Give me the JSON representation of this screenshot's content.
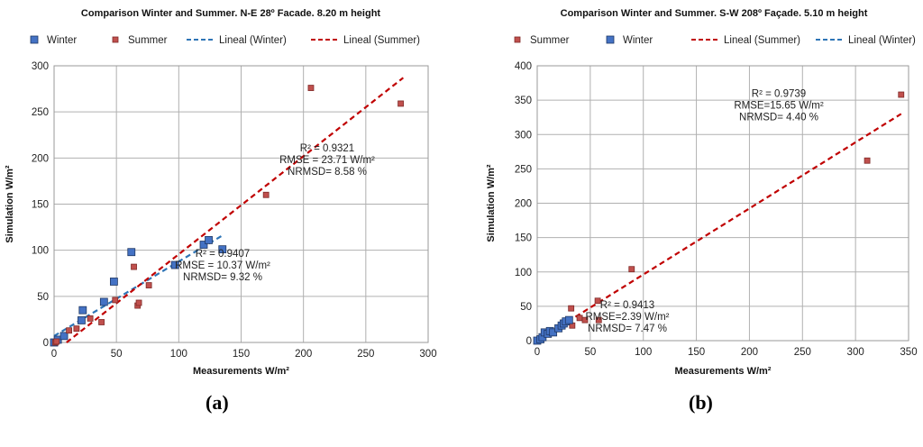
{
  "chart_data": [
    {
      "type": "scatter",
      "title": "Comparison Winter and Summer. N-E 28º Facade. 8.20 m height",
      "xlabel": "Measurements W/m²",
      "ylabel": "Simulation W/m²",
      "xlim": [
        0,
        300
      ],
      "ylim": [
        0,
        300
      ],
      "xticks": [
        "0",
        "50",
        "100",
        "150",
        "200",
        "250",
        "300"
      ],
      "yticks": [
        "0",
        "50",
        "100",
        "150",
        "200",
        "250",
        "300"
      ],
      "grid": true,
      "legend_position": "top",
      "legend": [
        {
          "label": "Winter",
          "kind": "marker",
          "color": "#4472c4"
        },
        {
          "label": "Summer",
          "kind": "marker",
          "color": "#c0504d"
        },
        {
          "label": "Lineal (Winter)",
          "kind": "line",
          "color": "#2e75b6"
        },
        {
          "label": "Lineal (Summer)",
          "kind": "line",
          "color": "#c00000"
        }
      ],
      "series": [
        {
          "name": "Winter",
          "color": "#4472c4",
          "marker": "square-large",
          "points": [
            [
              0,
              0
            ],
            [
              3,
              3
            ],
            [
              8,
              7
            ],
            [
              22,
              24
            ],
            [
              23,
              35
            ],
            [
              40,
              44
            ],
            [
              48,
              66
            ],
            [
              62,
              98
            ],
            [
              97,
              84
            ],
            [
              120,
              106
            ],
            [
              124,
              111
            ],
            [
              135,
              101
            ]
          ]
        },
        {
          "name": "Summer",
          "color": "#c0504d",
          "marker": "square-small",
          "points": [
            [
              1,
              0
            ],
            [
              2,
              1
            ],
            [
              12,
              13
            ],
            [
              18,
              15
            ],
            [
              29,
              26
            ],
            [
              38,
              22
            ],
            [
              49,
              46
            ],
            [
              64,
              82
            ],
            [
              67,
              40
            ],
            [
              68,
              43
            ],
            [
              76,
              62
            ],
            [
              170,
              160
            ],
            [
              206,
              276
            ],
            [
              278,
              259
            ]
          ]
        }
      ],
      "trendlines": [
        {
          "name": "Lineal (Winter)",
          "color": "#2e75b6",
          "x": [
            0,
            135
          ],
          "y": [
            7,
            116
          ]
        },
        {
          "name": "Lineal (Summer)",
          "color": "#c00000",
          "x": [
            10,
            280
          ],
          "y": [
            0,
            287
          ]
        }
      ],
      "annotations": [
        {
          "lines": [
            "R² = 0.9321",
            "RMSE = 23.71 W/m²",
            "NRMSD= 8.58 %"
          ],
          "anchor": [
            220,
            207
          ]
        },
        {
          "lines": [
            "R² = 0.9407",
            "RMSE = 10.37 W/m²",
            "NRMSD= 9.32 %"
          ],
          "anchor": [
            138,
            93
          ]
        }
      ]
    },
    {
      "type": "scatter",
      "title": "Comparison Winter and Summer. S-W 208º Façade. 5.10 m height",
      "xlabel": "Measurements W/m²",
      "ylabel": "Simulation W/m²",
      "xlim": [
        0,
        350
      ],
      "ylim": [
        0,
        400
      ],
      "xticks": [
        "0",
        "50",
        "100",
        "150",
        "200",
        "250",
        "300",
        "350"
      ],
      "yticks": [
        "0",
        "50",
        "100",
        "150",
        "200",
        "250",
        "300",
        "350",
        "400"
      ],
      "grid": true,
      "legend_position": "top",
      "legend": [
        {
          "label": "Summer",
          "kind": "marker",
          "color": "#c0504d"
        },
        {
          "label": "Winter",
          "kind": "marker",
          "color": "#4472c4"
        },
        {
          "label": "Lineal (Summer)",
          "kind": "line",
          "color": "#c00000"
        },
        {
          "label": "Lineal (Winter)",
          "kind": "line",
          "color": "#2e75b6"
        }
      ],
      "series": [
        {
          "name": "Summer",
          "color": "#c0504d",
          "marker": "square-small",
          "points": [
            [
              5,
              5
            ],
            [
              15,
              12
            ],
            [
              25,
              25
            ],
            [
              30,
              27
            ],
            [
              32,
              47
            ],
            [
              33,
              22
            ],
            [
              40,
              33
            ],
            [
              45,
              30
            ],
            [
              57,
              58
            ],
            [
              58,
              30
            ],
            [
              89,
              104
            ],
            [
              311,
              262
            ],
            [
              343,
              358
            ]
          ]
        },
        {
          "name": "Winter",
          "color": "#4472c4",
          "marker": "square-large",
          "points": [
            [
              0,
              0
            ],
            [
              3,
              2
            ],
            [
              5,
              5
            ],
            [
              7,
              12
            ],
            [
              10,
              10
            ],
            [
              12,
              14
            ],
            [
              15,
              12
            ],
            [
              20,
              18
            ],
            [
              23,
              22
            ],
            [
              25,
              25
            ],
            [
              27,
              28
            ],
            [
              30,
              30
            ]
          ]
        }
      ],
      "trendlines": [
        {
          "name": "Lineal (Summer)",
          "color": "#c00000",
          "x": [
            0,
            343
          ],
          "y": [
            0,
            330
          ]
        },
        {
          "name": "Lineal (Winter)",
          "color": "#2e75b6",
          "x": [
            0,
            30
          ],
          "y": [
            0,
            30
          ]
        }
      ],
      "annotations": [
        {
          "lines": [
            "R² = 0.9739",
            "RMSE=15.65 W/m²",
            "NRMSD= 4.40 %"
          ],
          "anchor": [
            255,
            355
          ]
        },
        {
          "lines": [
            "R² = 0.9413",
            "RMSE=2.39 W/m²",
            "NRMSD= 7.47 %"
          ],
          "anchor": [
            88,
            47
          ]
        }
      ]
    }
  ],
  "panel_labels": [
    "(a)",
    "(b)"
  ]
}
